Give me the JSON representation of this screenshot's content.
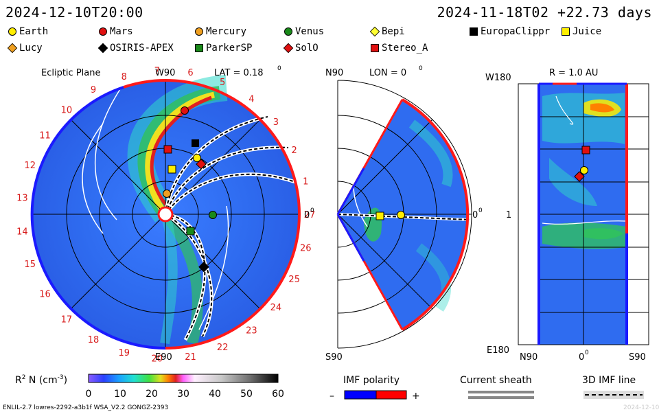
{
  "header": {
    "left_time": "2024-12-10T20:00",
    "right_time": "2024-11-18T02 +22.73 days"
  },
  "legend": [
    {
      "name": "Earth",
      "shape": "circle",
      "color": "#ffee00"
    },
    {
      "name": "Mars",
      "shape": "circle",
      "color": "#e01010"
    },
    {
      "name": "Mercury",
      "shape": "circle",
      "color": "#f0a020"
    },
    {
      "name": "Venus",
      "shape": "circle",
      "color": "#1a8a1a"
    },
    {
      "name": "Bepi",
      "shape": "diamond",
      "color": "#ffff33"
    },
    {
      "name": "EuropaClippr",
      "shape": "square",
      "color": "#000000"
    },
    {
      "name": "Juice",
      "shape": "square",
      "color": "#ffee00"
    },
    {
      "name": "Lucy",
      "shape": "diamond",
      "color": "#f0a020"
    },
    {
      "name": "OSIRIS-APEX",
      "shape": "diamond",
      "color": "#000000"
    },
    {
      "name": "ParkerSP",
      "shape": "square",
      "color": "#1a8a1a"
    },
    {
      "name": "SolO",
      "shape": "diamond",
      "color": "#e01010"
    },
    {
      "name": "Stereo_A",
      "shape": "square",
      "color": "#e01010"
    }
  ],
  "ecliptic": {
    "title": "Ecliptic Plane",
    "lat_label": "LAT = 0.18",
    "lat_sup": "0",
    "top_label": "W90",
    "bottom_label": "E90",
    "right_label": "0",
    "right_sup": "0",
    "day_marks": [
      "27",
      "1",
      "2",
      "3",
      "4",
      "5",
      "6",
      "7",
      "8",
      "9",
      "10",
      "11",
      "12",
      "13",
      "14",
      "15",
      "16",
      "17",
      "18",
      "19",
      "20",
      "21",
      "22",
      "23",
      "24",
      "25",
      "26"
    ]
  },
  "meridional": {
    "title": "LON = 0",
    "title_sup": "0",
    "top_label": "N90",
    "bottom_label": "S90",
    "right_label": "0",
    "right_sup": "0"
  },
  "radial": {
    "title": "R = 1.0 AU",
    "top_left": "W180",
    "bottom_left": "E180",
    "mid_left": "1",
    "bottom_ticks": [
      "N90",
      "0",
      "S90"
    ],
    "bottom_sup": "0"
  },
  "colorbar": {
    "label_prefix": "R",
    "label_sup": "2",
    "label_rest": " N (cm",
    "label_unit_sup": "-3",
    "label_end": ")",
    "ticks": [
      "0",
      "10",
      "20",
      "30",
      "40",
      "50",
      "60"
    ]
  },
  "imf": {
    "polarity_label": "IMF polarity",
    "minus": "–",
    "plus": "+",
    "sheath_label": "Current sheath",
    "line_label": "3D IMF line",
    "neg_color": "#0000ff",
    "pos_color": "#ff0000"
  },
  "footer": {
    "left": "ENLIL-2.7 lowres-2292-a3b1f WSA_V2.2 GONGZ-2393",
    "right": "2024-12-10"
  }
}
